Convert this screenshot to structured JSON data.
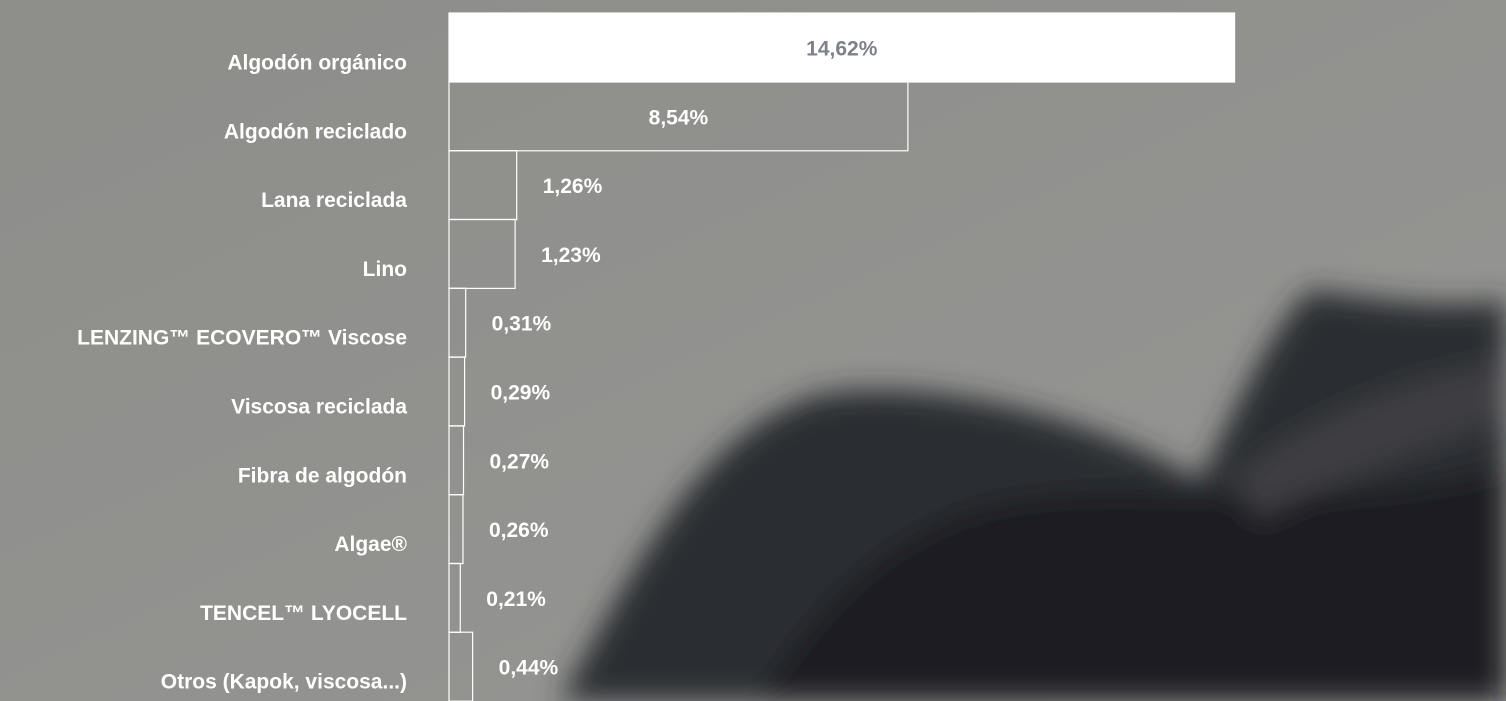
{
  "chart_data": {
    "type": "bar",
    "orientation": "horizontal",
    "categories": [
      "Algodón orgánico",
      "Algodón reciclado",
      "Lana reciclada",
      "Lino",
      "LENZING™  ECOVERO™ Viscose",
      "Viscosa reciclada",
      "Fibra de algodón",
      "Algae®",
      "TENCEL™ LYOCELL",
      "Otros (Kapok, viscosa...)"
    ],
    "values": [
      14.62,
      8.54,
      1.26,
      1.23,
      0.31,
      0.29,
      0.27,
      0.26,
      0.21,
      0.44
    ],
    "value_labels": [
      "14,62%",
      "8,54%",
      "1,26%",
      "1,23%",
      "0,31%",
      "0,29%",
      "0,27%",
      "0,26%",
      "0,21%",
      "0,44%"
    ],
    "colors": [
      "#ffffff",
      "none",
      "none",
      "none",
      "none",
      "none",
      "none",
      "none",
      "none",
      "none"
    ],
    "xlim": [
      0,
      15
    ]
  }
}
